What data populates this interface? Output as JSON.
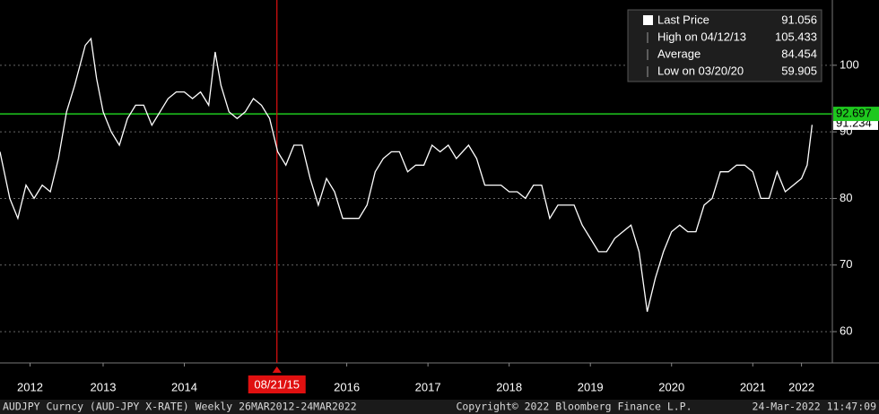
{
  "chart_data": {
    "type": "line",
    "x": [
      2012.23,
      2012.35,
      2012.45,
      2012.55,
      2012.65,
      2012.75,
      2012.85,
      2012.95,
      2013.05,
      2013.15,
      2013.28,
      2013.35,
      2013.42,
      2013.5,
      2013.6,
      2013.7,
      2013.8,
      2013.9,
      2014.0,
      2014.1,
      2014.2,
      2014.3,
      2014.4,
      2014.5,
      2014.6,
      2014.7,
      2014.8,
      2014.88,
      2014.95,
      2015.05,
      2015.15,
      2015.25,
      2015.35,
      2015.45,
      2015.55,
      2015.65,
      2015.75,
      2015.85,
      2015.95,
      2016.05,
      2016.15,
      2016.25,
      2016.35,
      2016.45,
      2016.55,
      2016.65,
      2016.75,
      2016.85,
      2016.95,
      2017.05,
      2017.15,
      2017.25,
      2017.35,
      2017.45,
      2017.55,
      2017.65,
      2017.75,
      2017.85,
      2018.0,
      2018.1,
      2018.2,
      2018.3,
      2018.4,
      2018.5,
      2018.6,
      2018.7,
      2018.8,
      2018.9,
      2019.0,
      2019.1,
      2019.2,
      2019.3,
      2019.4,
      2019.5,
      2019.6,
      2019.7,
      2019.8,
      2019.9,
      2020.0,
      2020.1,
      2020.2,
      2020.3,
      2020.4,
      2020.5,
      2020.6,
      2020.7,
      2020.8,
      2020.9,
      2021.0,
      2021.1,
      2021.2,
      2021.3,
      2021.4,
      2021.5,
      2021.6,
      2021.7,
      2021.8,
      2021.9,
      2022.0,
      2022.1,
      2022.17,
      2022.23
    ],
    "series": [
      {
        "name": "Last Price",
        "color": "#ffffff",
        "values": [
          87,
          80,
          77,
          82,
          80,
          82,
          81,
          86,
          93,
          97,
          103,
          104,
          98,
          93,
          90,
          88,
          92,
          94,
          94,
          91,
          93,
          95,
          96,
          96,
          95,
          96,
          94,
          102,
          97,
          93,
          92,
          93,
          95,
          94,
          92,
          87,
          85,
          88,
          88,
          83,
          79,
          83,
          81,
          77,
          77,
          77,
          79,
          84,
          86,
          87,
          87,
          84,
          85,
          85,
          88,
          87,
          88,
          86,
          88,
          86,
          82,
          82,
          82,
          81,
          81,
          80,
          82,
          82,
          77,
          79,
          79,
          79,
          76,
          74,
          72,
          72,
          74,
          75,
          76,
          72,
          63,
          68,
          72,
          75,
          76,
          75,
          75,
          79,
          80,
          84,
          84,
          85,
          85,
          84,
          80,
          80,
          84,
          81,
          82,
          83,
          85,
          91.056
        ]
      }
    ],
    "xlim": [
      2012.23,
      2022.48
    ],
    "ylim": [
      55.3,
      109.8
    ],
    "yticks": [
      60,
      70,
      80,
      90,
      100
    ],
    "xticks": [
      {
        "value": 2012.6,
        "label": "2012"
      },
      {
        "value": 2013.5,
        "label": "2013"
      },
      {
        "value": 2014.5,
        "label": "2014"
      },
      {
        "value": 2016.5,
        "label": "2016"
      },
      {
        "value": 2017.5,
        "label": "2017"
      },
      {
        "value": 2018.5,
        "label": "2018"
      },
      {
        "value": 2019.5,
        "label": "2019"
      },
      {
        "value": 2020.5,
        "label": "2020"
      },
      {
        "value": 2021.5,
        "label": "2021"
      },
      {
        "value": 2022.1,
        "label": "2022"
      }
    ],
    "grid": true,
    "hline": {
      "value": 92.697,
      "color": "#1ec81e"
    },
    "last_marker": 91.234,
    "vline": {
      "value": 2015.64,
      "label": "08/21/15",
      "color": "#e01010"
    },
    "legend": {
      "last_price": 91.056,
      "stats": [
        {
          "label": "High on 04/12/13",
          "value": 105.433
        },
        {
          "label": "Average",
          "value": 84.454
        },
        {
          "label": "Low on 03/20/20",
          "value": 59.905
        }
      ]
    },
    "footer": {
      "left": "AUDJPY Curncy (AUD-JPY X-RATE) Weekly 26MAR2012-24MAR2022",
      "center": "Copyright© 2022 Bloomberg Finance L.P.",
      "right": "24-Mar-2022 11:47:09"
    }
  }
}
